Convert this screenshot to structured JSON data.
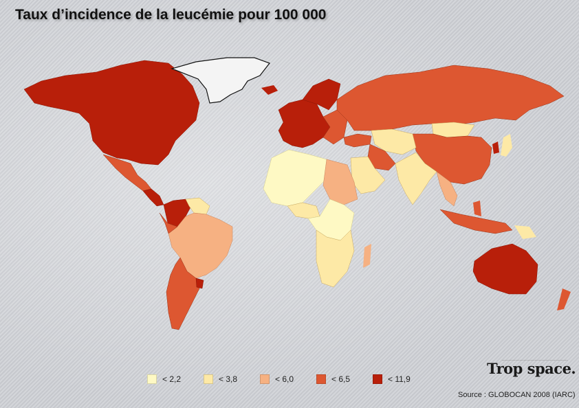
{
  "title": "Taux d’incidence de la leucémie pour 100 000",
  "legend": [
    {
      "label": "< 2,2",
      "color": "#fef9c4"
    },
    {
      "label": "< 3,8",
      "color": "#fde9a6"
    },
    {
      "label": "< 6,0",
      "color": "#f6b182"
    },
    {
      "label": "< 6,5",
      "color": "#dd5731"
    },
    {
      "label": "< 11,9",
      "color": "#b81f0a"
    }
  ],
  "logo": "Trop space.",
  "source": "Source : GLOBOCAN 2008 (IARC)"
}
